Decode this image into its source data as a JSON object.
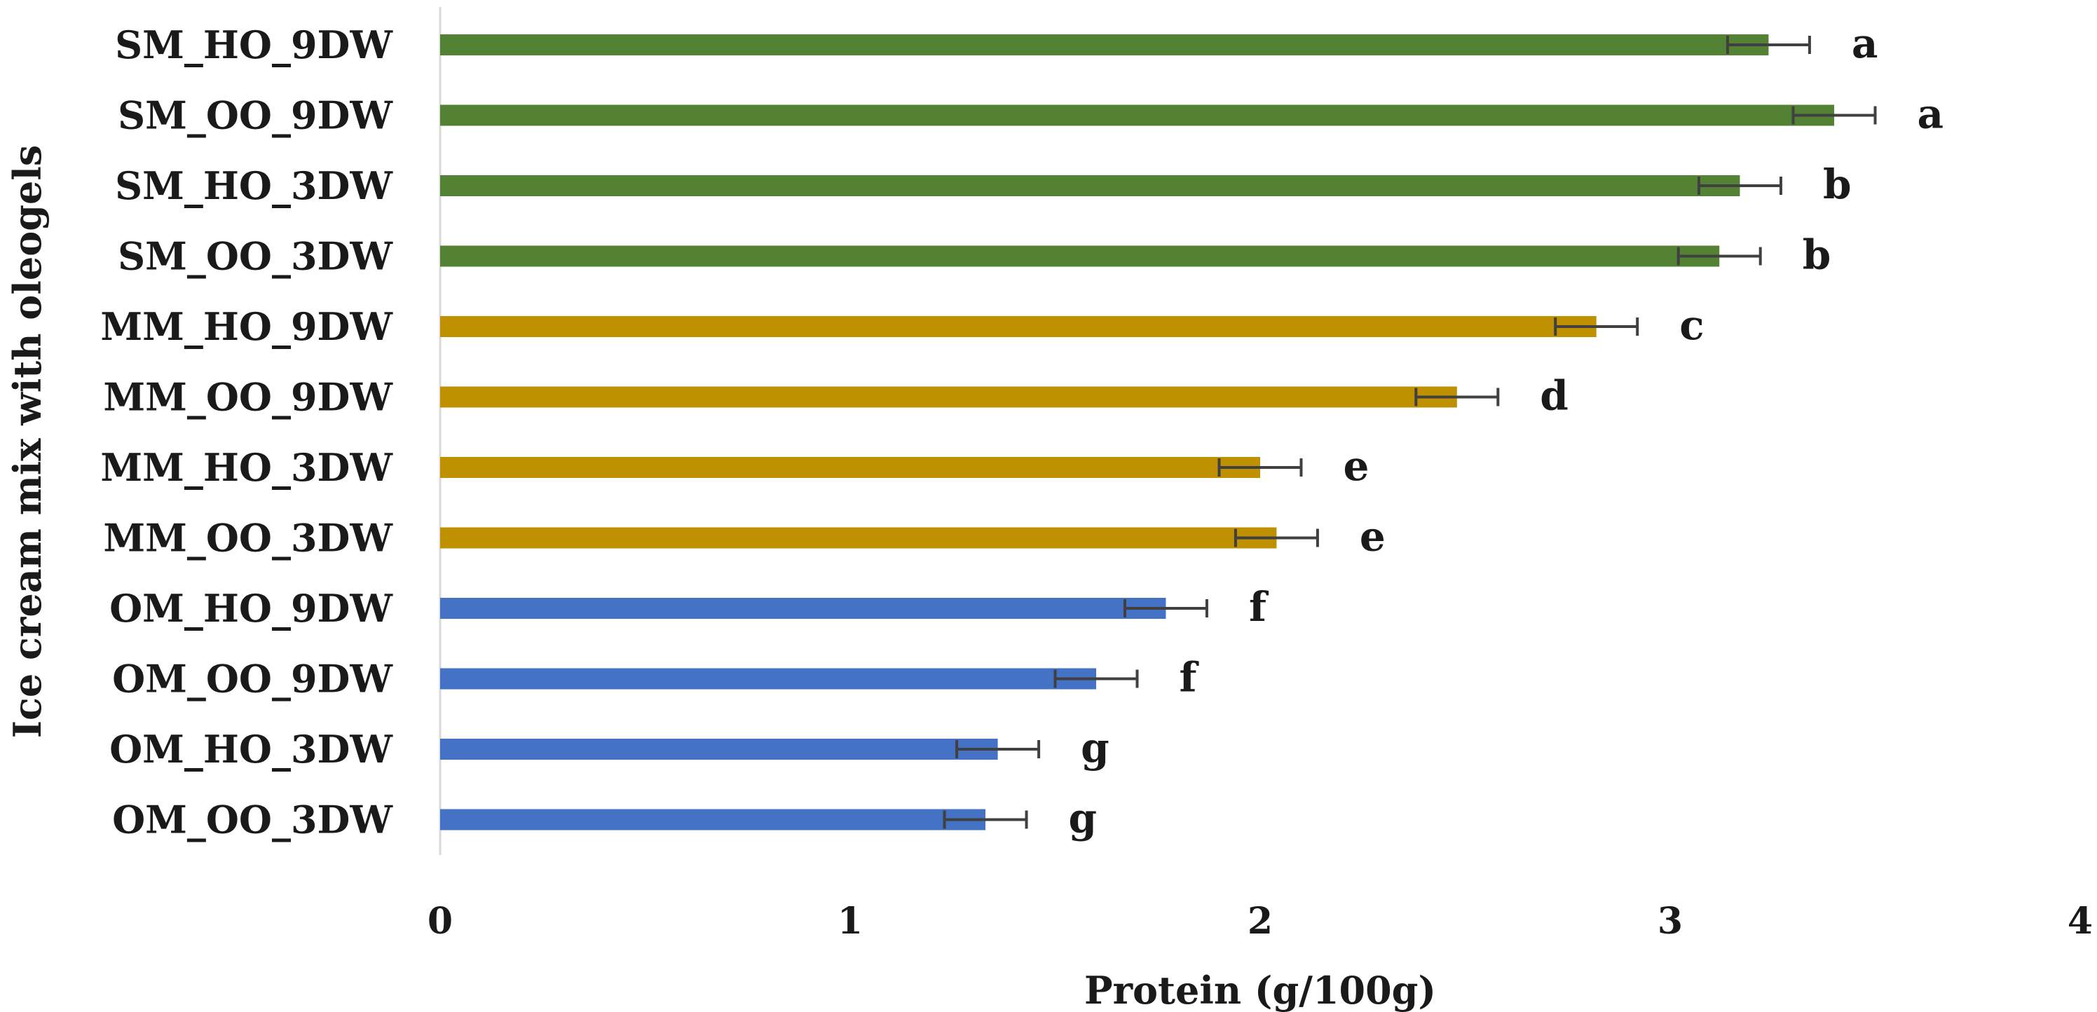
{
  "chart_data": {
    "type": "bar",
    "orientation": "horizontal",
    "xlabel": "Protein (g/100g)",
    "ylabel": "Ice cream mix with oleogels",
    "xlim": [
      0,
      4
    ],
    "xticks": [
      "0",
      "1",
      "2",
      "3",
      "4"
    ],
    "grid": false,
    "series_colors": {
      "SM": "#548235",
      "MM": "#BF9000",
      "OM": "#4472C4"
    },
    "errorbar_color": "#404040",
    "axis_color": "#d9d9d9",
    "categories": [
      {
        "label": "SM_HO_9DW",
        "group": "SM",
        "value": 3.24,
        "error": 0.1,
        "sig": "a"
      },
      {
        "label": "SM_OO_9DW",
        "group": "SM",
        "value": 3.4,
        "error": 0.1,
        "sig": "a"
      },
      {
        "label": "SM_HO_3DW",
        "group": "SM",
        "value": 3.17,
        "error": 0.1,
        "sig": "b"
      },
      {
        "label": "SM_OO_3DW",
        "group": "SM",
        "value": 3.12,
        "error": 0.1,
        "sig": "b"
      },
      {
        "label": "MM_HO_9DW",
        "group": "MM",
        "value": 2.82,
        "error": 0.1,
        "sig": "c"
      },
      {
        "label": "MM_OO_9DW",
        "group": "MM",
        "value": 2.48,
        "error": 0.1,
        "sig": "d"
      },
      {
        "label": "MM_HO_3DW",
        "group": "MM",
        "value": 2.0,
        "error": 0.1,
        "sig": "e"
      },
      {
        "label": "MM_OO_3DW",
        "group": "MM",
        "value": 2.04,
        "error": 0.1,
        "sig": "e"
      },
      {
        "label": "OM_HO_9DW",
        "group": "OM",
        "value": 1.77,
        "error": 0.1,
        "sig": "f"
      },
      {
        "label": "OM_OO_9DW",
        "group": "OM",
        "value": 1.6,
        "error": 0.1,
        "sig": "f"
      },
      {
        "label": "OM_HO_3DW",
        "group": "OM",
        "value": 1.36,
        "error": 0.1,
        "sig": "g"
      },
      {
        "label": "OM_OO_3DW",
        "group": "OM",
        "value": 1.33,
        "error": 0.1,
        "sig": "g"
      }
    ]
  }
}
